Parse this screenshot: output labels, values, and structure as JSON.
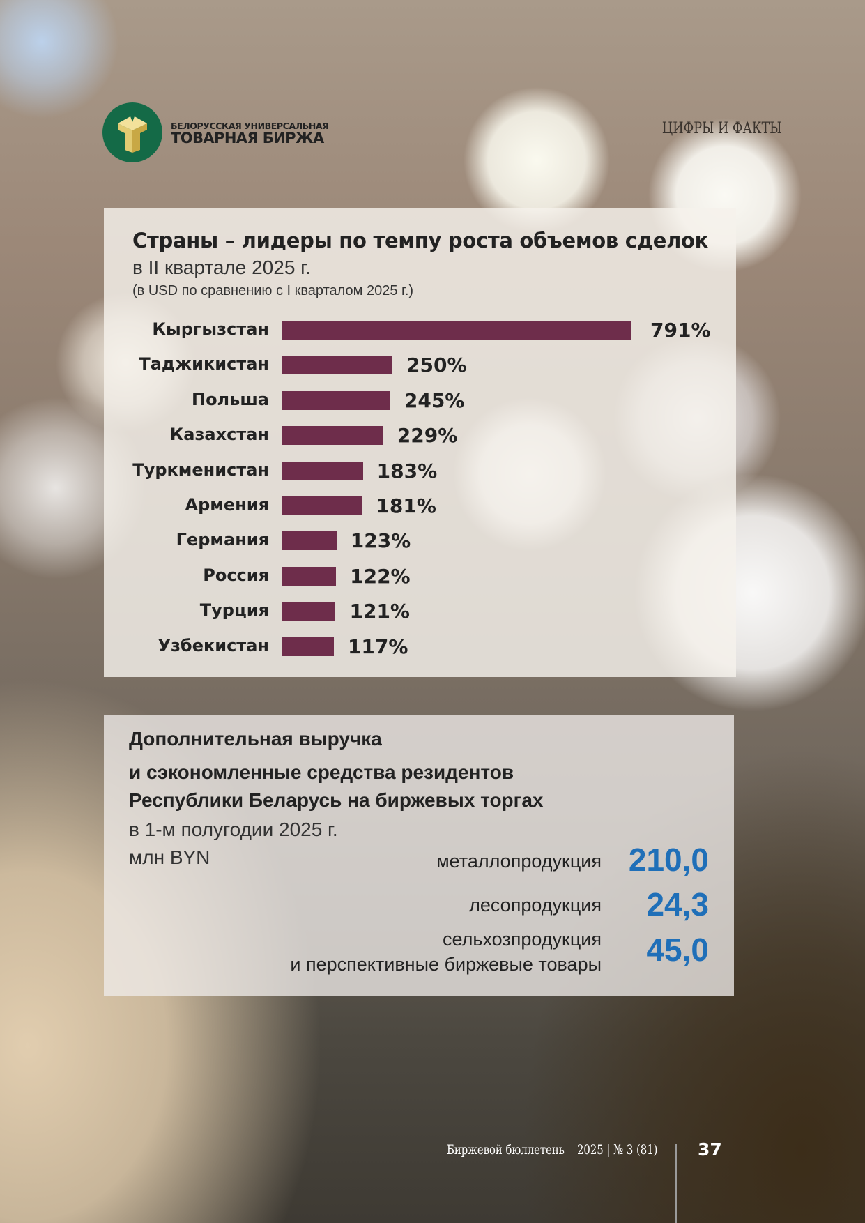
{
  "header": {
    "logo_line1": "БЕЛОРУССКАЯ УНИВЕРСАЛЬНАЯ",
    "logo_line2": "ТОВАРНАЯ БИРЖА",
    "section": "ЦИФРЫ И ФАКТЫ"
  },
  "chart_data": {
    "type": "bar",
    "orientation": "horizontal",
    "title": "Страны – лидеры по темпу роста объемов сделок",
    "subtitle": "в II квартале 2025 г.",
    "note": "(в USD по сравнению с I кварталом 2025 г.)",
    "categories": [
      "Кыргызстан",
      "Таджикистан",
      "Польша",
      "Казахстан",
      "Туркменистан",
      "Армения",
      "Германия",
      "Россия",
      "Турция",
      "Узбекистан"
    ],
    "values": [
      791,
      250,
      245,
      229,
      183,
      181,
      123,
      122,
      121,
      117
    ],
    "value_labels": [
      "791%",
      "250%",
      "245%",
      "229%",
      "183%",
      "181%",
      "123%",
      "122%",
      "121%",
      "117%"
    ],
    "unit": "%",
    "bar_color": "#6e2d4b",
    "xlim": [
      0,
      791
    ],
    "grid": false
  },
  "revenue": {
    "title_lines": [
      "Дополнительная выручка",
      "и сэкономленные средства резидентов",
      "Республики Беларусь на биржевых торгах"
    ],
    "period": "в 1-м полугодии 2025 г.",
    "unit": "млн BYN",
    "items": [
      {
        "label_lines": [
          "металлопродукция"
        ],
        "value": "210,0"
      },
      {
        "label_lines": [
          "лесопродукция"
        ],
        "value": "24,3"
      },
      {
        "label_lines": [
          "сельхозпродукция",
          "и перспективные биржевые товары"
        ],
        "value": "45,0"
      }
    ],
    "value_color": "#1f6fb8"
  },
  "footer": {
    "publication": "Биржевой бюллетень",
    "issue": "2025 | № 3 (81)",
    "page_number": "37"
  }
}
